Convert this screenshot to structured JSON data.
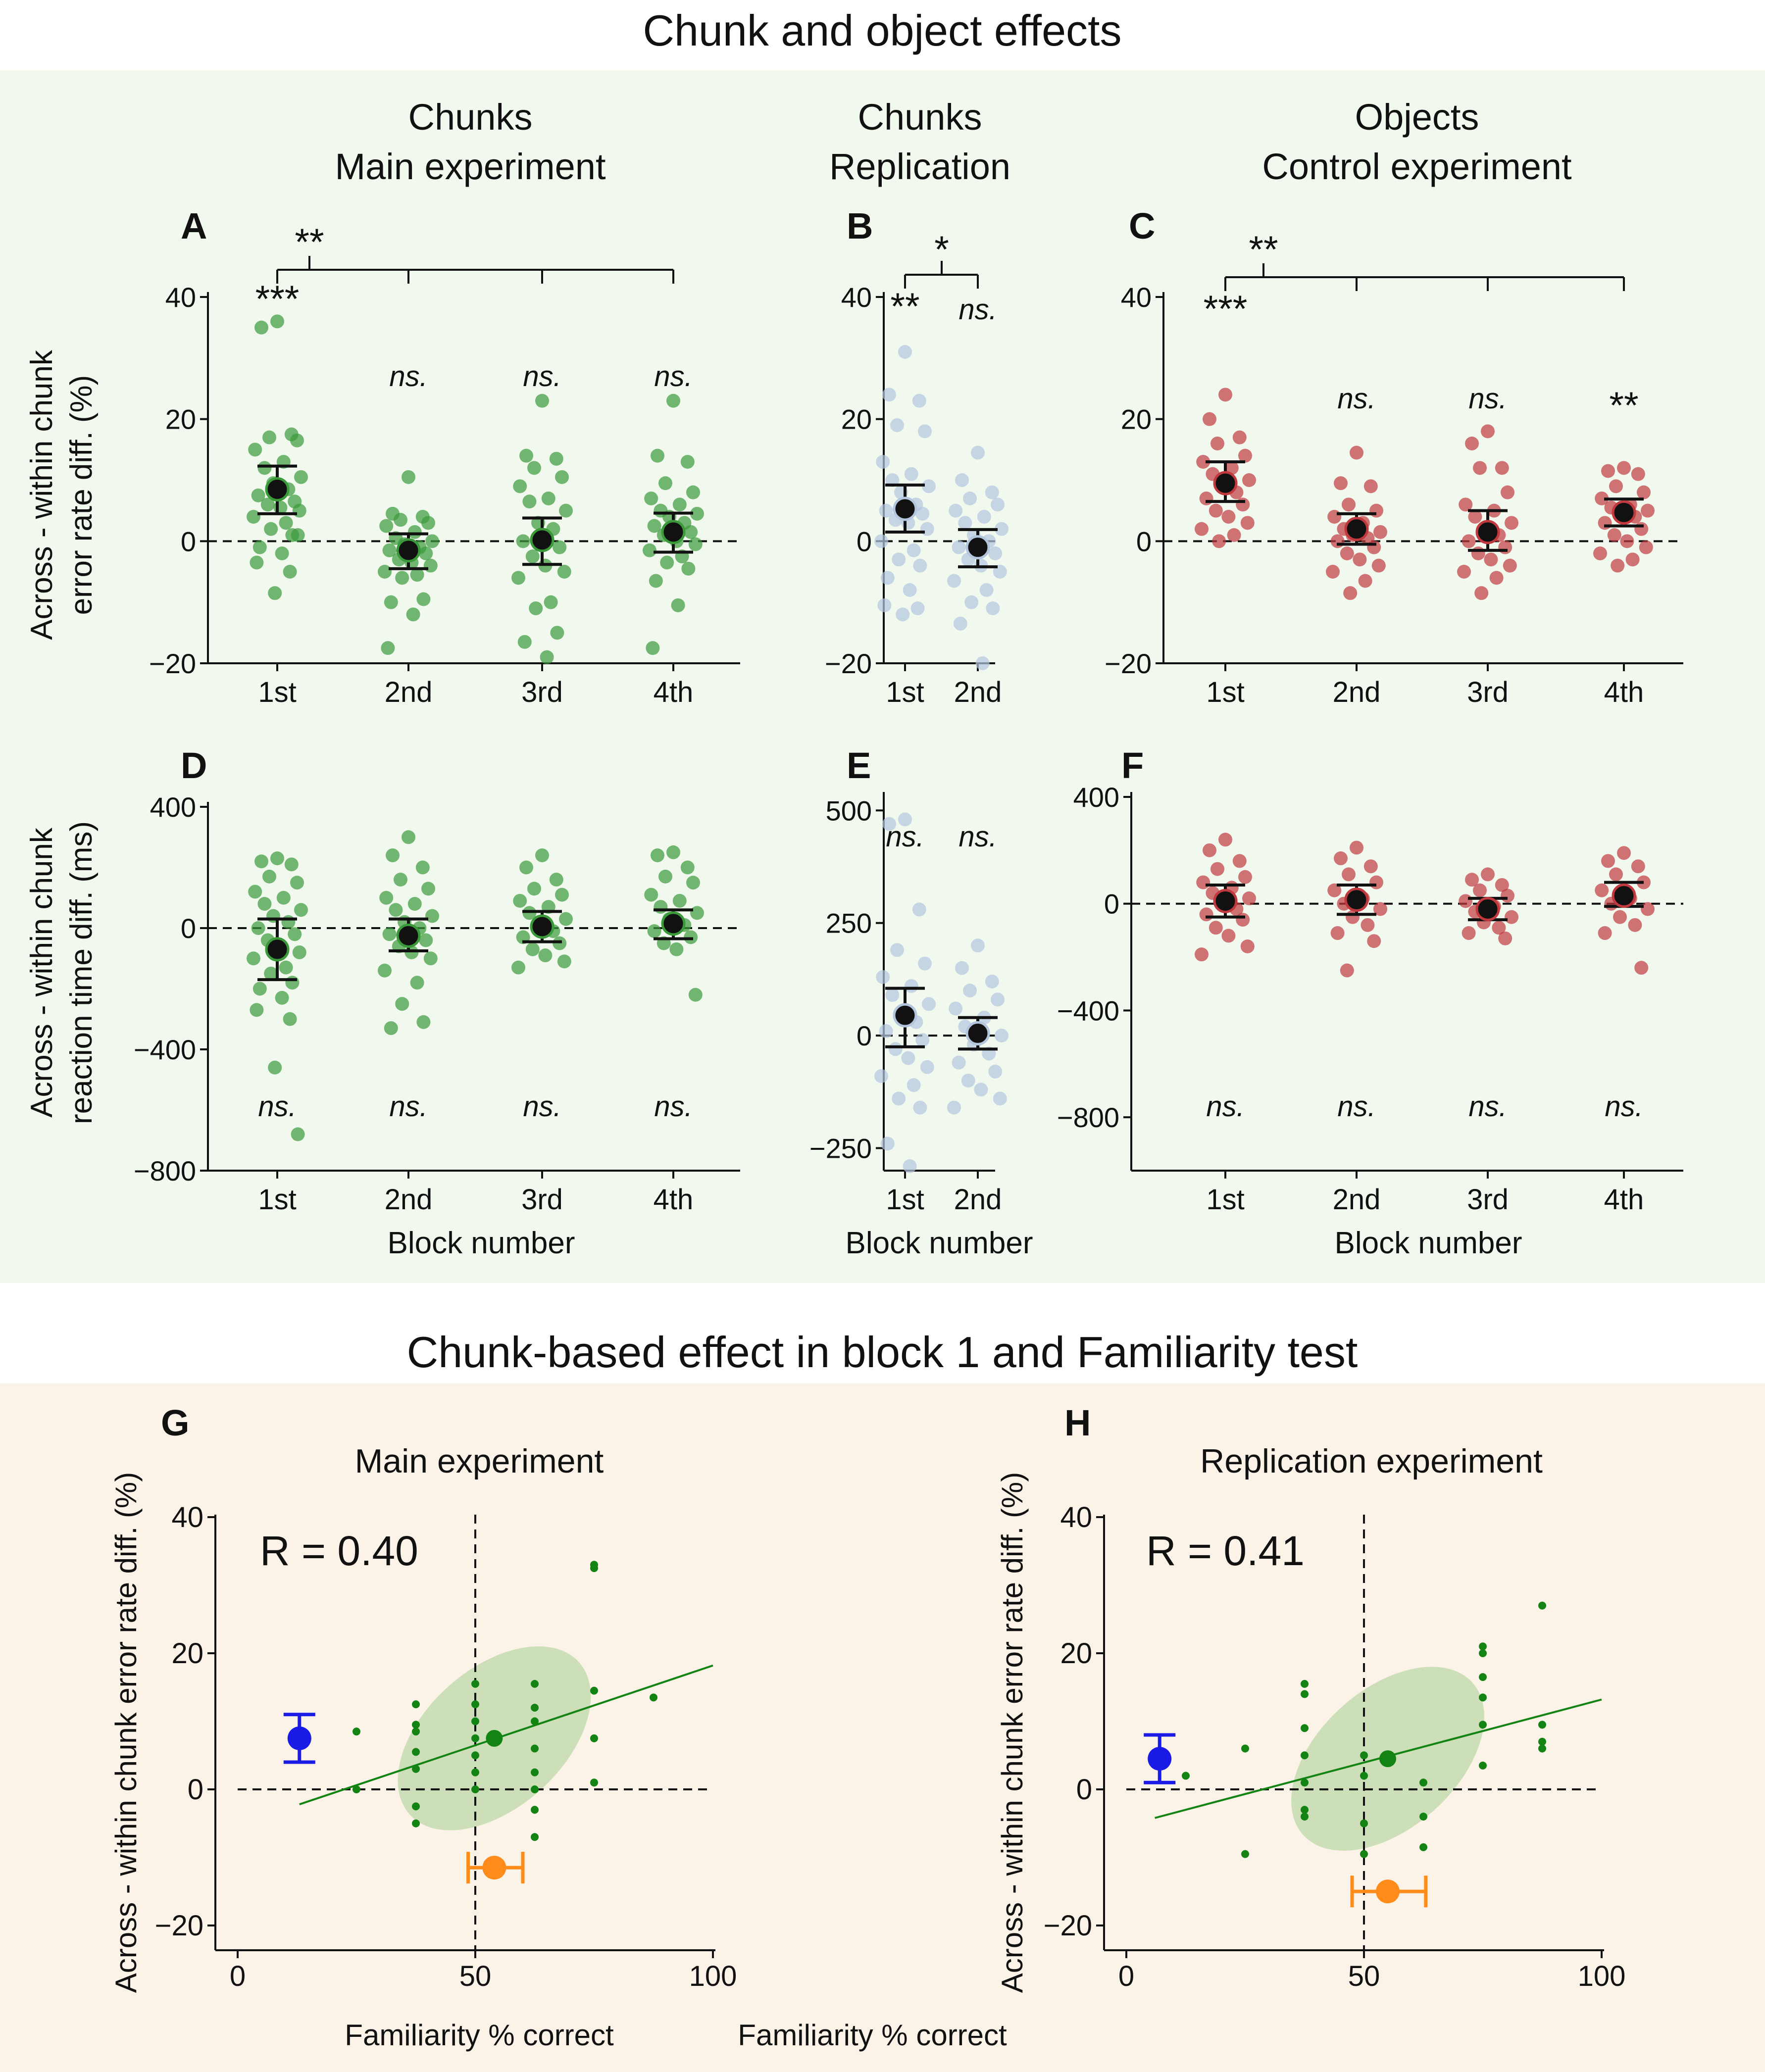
{
  "figure": {
    "top_title": "Chunk and object effects",
    "bottom_title": "Chunk-based effect in block 1 and Familiarity test",
    "top_bg": "#f1f8ed",
    "bottom_bg": "#fbf2e8",
    "col_headers": [
      {
        "line1": "Chunks",
        "line2": "Main experiment"
      },
      {
        "line1": "Chunks",
        "line2": "Replication"
      },
      {
        "line1": "Objects",
        "line2": "Control experiment"
      }
    ],
    "ylabel_error": [
      "Across - within chunk",
      "error rate diff. (%)"
    ],
    "ylabel_rt": [
      "Across - within chunk",
      "reaction time diff. (ms)"
    ],
    "xlabel_block": "Block number",
    "scatter_ylabel": "Across - within chunk error rate diff. (%)",
    "scatter_xlabel": "Familiarity % correct",
    "colors": {
      "green": "#3a9a3a",
      "blue_light": "#b4c6de",
      "red": "#c0393e",
      "green_dark": "#138413",
      "ellipse": "#c4dcb0",
      "blue_marker": "#1a1ae6",
      "orange_marker": "#ff8c1a"
    }
  },
  "chart_data": [
    {
      "panel": "A",
      "type": "scatter",
      "ylim": [
        -20,
        40
      ],
      "yticks": [
        -20,
        0,
        20,
        40
      ],
      "categories": [
        "1st",
        "2nd",
        "3rd",
        "4th"
      ],
      "means": [
        8.5,
        -1.5,
        0.2,
        1.5
      ],
      "error_low": [
        4.5,
        -4.5,
        -3.8,
        -1.8
      ],
      "error_high": [
        12.3,
        1.2,
        3.8,
        4.6
      ],
      "significance": [
        "***",
        "ns.",
        "ns.",
        "ns."
      ],
      "bracket": "**",
      "points": [
        [
          36,
          35,
          17.5,
          17,
          16.5,
          15,
          13,
          12,
          10.5,
          9.5,
          8.5,
          7.5,
          6.5,
          6,
          5.5,
          5,
          4,
          3,
          2,
          1,
          -1,
          -2,
          -3.5,
          -5,
          -8.5,
          1
        ],
        [
          10.5,
          4.5,
          4,
          3.5,
          3,
          2.5,
          1.5,
          0.5,
          0,
          -0.5,
          -1,
          -1.5,
          -2,
          -3,
          -3.5,
          -4,
          -5,
          -5.5,
          -6,
          -9.5,
          -10,
          -12,
          -17.5
        ],
        [
          23,
          14,
          13.5,
          12,
          10.5,
          9,
          7,
          6.5,
          5,
          3,
          2,
          0,
          -1,
          -2.5,
          -4,
          -5,
          -6,
          -10,
          -11,
          -15,
          -16.5,
          -19
        ],
        [
          23,
          14,
          13,
          9.5,
          8,
          7,
          6,
          5,
          4.5,
          4,
          3,
          2.5,
          1.5,
          1,
          0,
          -0.5,
          -1.5,
          -2.5,
          -3.5,
          -4.5,
          -6.5,
          -10.5,
          -17.5
        ]
      ]
    },
    {
      "panel": "B",
      "type": "scatter",
      "ylim": [
        -20,
        40
      ],
      "yticks": [
        -20,
        0,
        20,
        40
      ],
      "categories": [
        "1st",
        "2nd"
      ],
      "means": [
        5.3,
        -1.0
      ],
      "error_low": [
        1.5,
        -4.2
      ],
      "error_high": [
        9.2,
        1.9
      ],
      "significance": [
        "**",
        "ns."
      ],
      "bracket": "*",
      "points": [
        [
          31,
          24,
          23,
          19,
          18,
          13,
          11,
          10,
          9,
          8,
          6,
          5,
          4.5,
          3.5,
          3,
          2,
          0,
          -1.5,
          -3,
          -4,
          -6,
          -8,
          -10.5,
          -11,
          -12
        ],
        [
          14.5,
          10,
          8,
          7,
          6,
          5,
          4,
          3,
          2,
          1,
          0,
          -1,
          -2,
          -3,
          -4,
          -5,
          -6.5,
          -8,
          -10,
          -11,
          -13.5,
          -20
        ]
      ]
    },
    {
      "panel": "C",
      "type": "scatter",
      "ylim": [
        -20,
        40
      ],
      "yticks": [
        -20,
        0,
        20,
        40
      ],
      "categories": [
        "1st",
        "2nd",
        "3rd",
        "4th"
      ],
      "means": [
        9.5,
        2.0,
        1.5,
        4.7
      ],
      "error_low": [
        6.5,
        -0.5,
        -1.5,
        2.5
      ],
      "error_high": [
        13.0,
        4.5,
        5.0,
        6.9
      ],
      "significance": [
        "***",
        "ns.",
        "ns.",
        "**"
      ],
      "bracket": "**",
      "points": [
        [
          24,
          20,
          17,
          16,
          14,
          13,
          12,
          11,
          10,
          9,
          8,
          7,
          6,
          5,
          4,
          3,
          2,
          1,
          0
        ],
        [
          14.5,
          9.5,
          9,
          6,
          5,
          4,
          3,
          2,
          1.5,
          1,
          0.5,
          0,
          -1,
          -2,
          -3,
          -4,
          -5,
          -6.5,
          -8.5
        ],
        [
          18,
          16,
          12,
          12,
          8,
          6,
          5,
          4,
          3,
          2,
          1,
          0,
          -1,
          -2,
          -3,
          -4,
          -5,
          -6,
          -8.5
        ],
        [
          12,
          11.5,
          11,
          9,
          8,
          7,
          6,
          5.5,
          5,
          4.5,
          4,
          3,
          2,
          1,
          0,
          -1,
          -2,
          -3,
          -4
        ]
      ]
    },
    {
      "panel": "D",
      "type": "scatter",
      "ylim": [
        -800,
        400
      ],
      "yticks": [
        -800,
        -400,
        0,
        400
      ],
      "categories": [
        "1st",
        "2nd",
        "3rd",
        "4th"
      ],
      "means": [
        -70,
        -25,
        5,
        15
      ],
      "error_low": [
        -170,
        -75,
        -45,
        -35
      ],
      "error_high": [
        30,
        30,
        55,
        60
      ],
      "significance": [
        "ns.",
        "ns.",
        "ns.",
        "ns."
      ],
      "points": [
        [
          230,
          220,
          210,
          170,
          150,
          120,
          100,
          80,
          60,
          40,
          20,
          0,
          -20,
          -40,
          -60,
          -80,
          -100,
          -130,
          -150,
          -180,
          -200,
          -230,
          -270,
          -300,
          -460,
          -680
        ],
        [
          300,
          240,
          200,
          160,
          130,
          100,
          80,
          60,
          40,
          20,
          0,
          -20,
          -40,
          -60,
          -80,
          -100,
          -140,
          -180,
          -250,
          -310,
          -330
        ],
        [
          240,
          200,
          160,
          130,
          110,
          90,
          70,
          50,
          30,
          10,
          -10,
          -30,
          -50,
          -70,
          -90,
          -110,
          -130
        ],
        [
          250,
          240,
          200,
          170,
          150,
          110,
          90,
          70,
          50,
          30,
          10,
          -10,
          -30,
          -50,
          -70,
          -220
        ]
      ]
    },
    {
      "panel": "E",
      "type": "scatter",
      "ylim": [
        -300,
        530
      ],
      "yticks": [
        -250,
        0,
        250,
        500
      ],
      "categories": [
        "1st",
        "2nd"
      ],
      "means": [
        45,
        5
      ],
      "error_low": [
        -25,
        -30
      ],
      "error_high": [
        105,
        40
      ],
      "significance": [
        "ns.",
        "ns."
      ],
      "points": [
        [
          480,
          470,
          280,
          190,
          160,
          130,
          110,
          90,
          70,
          50,
          30,
          10,
          -10,
          -30,
          -50,
          -70,
          -90,
          -110,
          -140,
          -160,
          -240,
          -290
        ],
        [
          200,
          150,
          120,
          100,
          80,
          60,
          40,
          20,
          0,
          -20,
          -40,
          -60,
          -80,
          -100,
          -120,
          -140,
          -160
        ]
      ]
    },
    {
      "panel": "F",
      "type": "scatter",
      "ylim": [
        -1000,
        400
      ],
      "yticks": [
        -800,
        -400,
        0,
        400
      ],
      "categories": [
        "1st",
        "2nd",
        "3rd",
        "4th"
      ],
      "means": [
        10,
        15,
        -20,
        30
      ],
      "error_low": [
        -50,
        -40,
        -60,
        -10
      ],
      "error_high": [
        70,
        70,
        20,
        80
      ],
      "significance": [
        "ns.",
        "ns.",
        "ns.",
        "ns."
      ],
      "points": [
        [
          240,
          200,
          160,
          130,
          100,
          80,
          60,
          40,
          20,
          0,
          -20,
          -40,
          -60,
          -90,
          -120,
          -160,
          -190
        ],
        [
          210,
          170,
          140,
          110,
          80,
          50,
          20,
          0,
          -20,
          -50,
          -80,
          -110,
          -140,
          -250
        ],
        [
          110,
          90,
          70,
          50,
          30,
          10,
          -10,
          -30,
          -50,
          -70,
          -90,
          -110,
          -130
        ],
        [
          190,
          160,
          140,
          110,
          80,
          50,
          20,
          0,
          -20,
          -50,
          -80,
          -110,
          -240
        ]
      ]
    },
    {
      "panel": "G",
      "type": "scatter",
      "title": "Main experiment",
      "r_label": "R = 0.40",
      "xlim": [
        0,
        100
      ],
      "ylim": [
        -20,
        40
      ],
      "xticks": [
        0,
        50,
        100
      ],
      "yticks": [
        -20,
        0,
        20,
        40
      ],
      "points": [
        [
          75,
          33
        ],
        [
          75,
          32.5
        ],
        [
          87.5,
          13.5
        ],
        [
          75,
          14.5
        ],
        [
          75,
          7.5
        ],
        [
          75,
          1
        ],
        [
          62.5,
          15.5
        ],
        [
          62.5,
          12
        ],
        [
          62.5,
          10
        ],
        [
          62.5,
          6
        ],
        [
          62.5,
          2.5
        ],
        [
          62.5,
          0
        ],
        [
          62.5,
          -3
        ],
        [
          62.5,
          -7
        ],
        [
          50,
          15.5
        ],
        [
          50,
          12.5
        ],
        [
          50,
          10
        ],
        [
          50,
          7.5
        ],
        [
          50,
          5
        ],
        [
          50,
          2.5
        ],
        [
          50,
          0
        ],
        [
          37.5,
          12.5
        ],
        [
          37.5,
          9.5
        ],
        [
          37.5,
          8.5
        ],
        [
          37.5,
          5.5
        ],
        [
          37.5,
          3
        ],
        [
          37.5,
          -2.5
        ],
        [
          37.5,
          -5
        ],
        [
          25,
          8.5
        ],
        [
          25,
          0
        ]
      ],
      "regression": {
        "x": [
          13,
          100
        ],
        "y": [
          -2.2,
          18.2
        ]
      },
      "centroid": [
        54,
        7.5
      ],
      "blue_marker": {
        "x": 13,
        "y": 7.5,
        "err": [
          4,
          11
        ]
      },
      "orange_marker": {
        "x": 54,
        "y": -11.5,
        "err": [
          48.5,
          60
        ]
      }
    },
    {
      "panel": "H",
      "type": "scatter",
      "title": "Replication experiment",
      "r_label": "R = 0.41",
      "xlim": [
        0,
        100
      ],
      "ylim": [
        -20,
        40
      ],
      "xticks": [
        0,
        50,
        100
      ],
      "yticks": [
        -20,
        0,
        20,
        40
      ],
      "points": [
        [
          87.5,
          27
        ],
        [
          87.5,
          9.5
        ],
        [
          87.5,
          7
        ],
        [
          87.5,
          6
        ],
        [
          75,
          21
        ],
        [
          75,
          20
        ],
        [
          75,
          16.5
        ],
        [
          75,
          13.5
        ],
        [
          75,
          9.5
        ],
        [
          75,
          3.5
        ],
        [
          62.5,
          1
        ],
        [
          62.5,
          -4
        ],
        [
          62.5,
          -8.5
        ],
        [
          50,
          5
        ],
        [
          50,
          2
        ],
        [
          50,
          -5
        ],
        [
          50,
          -9.5
        ],
        [
          37.5,
          15.5
        ],
        [
          37.5,
          14
        ],
        [
          37.5,
          9
        ],
        [
          37.5,
          5
        ],
        [
          37.5,
          1
        ],
        [
          37.5,
          -3
        ],
        [
          37.5,
          -4
        ],
        [
          25,
          6
        ],
        [
          25,
          -9.5
        ],
        [
          12.5,
          2
        ]
      ],
      "regression": {
        "x": [
          6,
          100
        ],
        "y": [
          -4.2,
          13.2
        ]
      },
      "centroid": [
        55,
        4.5
      ],
      "blue_marker": {
        "x": 7,
        "y": 4.5,
        "err": [
          1,
          8
        ]
      },
      "orange_marker": {
        "x": 55,
        "y": -15,
        "err": [
          47.5,
          63
        ]
      }
    }
  ]
}
